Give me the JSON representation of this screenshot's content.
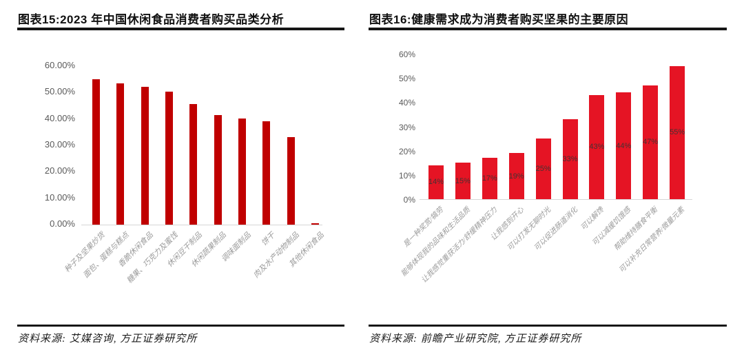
{
  "panels": {
    "left": {
      "title": "图表15:2023 年中国休闲食品消费者购买品类分析",
      "source": "资料来源: 艾媒咨询, 方正证券研究所"
    },
    "right": {
      "title": "图表16:健康需求成为消费者购买坚果的主要原因",
      "source": "资料来源: 前瞻产业研究院, 方正证券研究所"
    }
  },
  "chart_data": [
    {
      "id": "left",
      "type": "bar",
      "title": "2023 年中国休闲食品消费者购买品类分析",
      "categories": [
        "种子及坚果炒货",
        "面包、蛋糕与糕点",
        "香脆休闲食品",
        "糖果、巧克力及蜜饯",
        "休闲豆干制品",
        "休闲蔬果制品",
        "调味面制品",
        "饼干",
        "肉及水产动物制品",
        "其他休闲食品"
      ],
      "values": [
        55.0,
        53.6,
        52.3,
        50.4,
        45.6,
        41.5,
        40.2,
        39.1,
        33.2,
        0.5
      ],
      "value_labels": [],
      "y_ticks": [
        "60.00%",
        "50.00%",
        "40.00%",
        "30.00%",
        "20.00%",
        "10.00%",
        "0.00%"
      ],
      "ylim": [
        0,
        60
      ],
      "ylabel": "",
      "xlabel": "",
      "grid": false,
      "legend": false,
      "bar_color": "#c00000"
    },
    {
      "id": "right",
      "type": "bar",
      "title": "健康需求成为消费者购买坚果的主要原因",
      "categories": [
        "是一种奖赏/犒劳",
        "能够体现我的品味和生活品质",
        "让我感觉重获活力/舒缓精神压力",
        "让我感到开心",
        "可以打发无聊时光",
        "可以促进肠道消化",
        "可以解馋",
        "可以减缓饥饿感",
        "帮助维持膳食平衡",
        "可以补充日常营养/微量元素"
      ],
      "values": [
        14,
        15,
        17,
        19,
        25,
        33,
        43,
        44,
        47,
        55
      ],
      "value_labels": [
        "14%",
        "15%",
        "17%",
        "19%",
        "25%",
        "33%",
        "43%",
        "44%",
        "47%",
        "55%"
      ],
      "y_ticks": [
        "60%",
        "50%",
        "40%",
        "30%",
        "20%",
        "10%",
        "0%"
      ],
      "ylim": [
        0,
        60
      ],
      "ylabel": "",
      "xlabel": "",
      "grid": false,
      "legend": false,
      "bar_color": "#e51424"
    }
  ],
  "colors": {
    "left_bar": "#c00000",
    "right_bar": "#e51424",
    "axis_text": "#595959",
    "category_text": "#9b9b9b",
    "value_label_text": "#453232",
    "rule": "#161616",
    "baseline": "#d6d6d6"
  }
}
